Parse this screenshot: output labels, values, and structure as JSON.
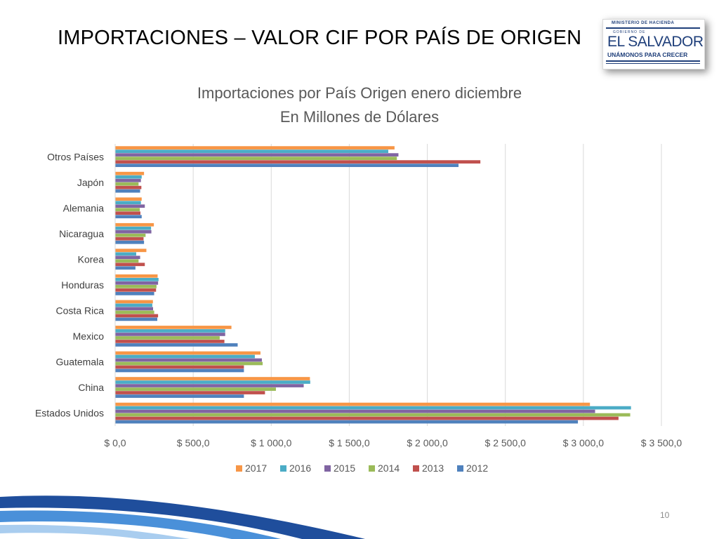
{
  "slide": {
    "title": "IMPORTACIONES –  VALOR CIF POR PAÍS DE ORIGEN",
    "page_number": "10"
  },
  "logo": {
    "ministry": "MINISTERIO DE HACIENDA",
    "government": "GOBIERNO DE",
    "name": "EL SALVADOR",
    "slogan": "UNÁMONOS PARA CRECER"
  },
  "chart_data": {
    "type": "bar",
    "orientation": "horizontal",
    "title": "Importaciones por País Origen enero diciembre",
    "subtitle": "En Millones de Dólares",
    "categories": [
      "Estados Unidos",
      "China",
      "Guatemala",
      "Mexico",
      "Costa Rica",
      "Honduras",
      "Korea",
      "Nicaragua",
      "Alemania",
      "Japón",
      "Otros Países"
    ],
    "series": [
      {
        "name": "2017",
        "color": "#f79646",
        "values": [
          3042,
          1248,
          931,
          745,
          242,
          272,
          200,
          248,
          170,
          185,
          1790
        ]
      },
      {
        "name": "2016",
        "color": "#4bacc6",
        "values": [
          3305,
          1250,
          895,
          705,
          238,
          278,
          135,
          230,
          165,
          170,
          1750
        ]
      },
      {
        "name": "2015",
        "color": "#8064a2",
        "values": [
          3075,
          1208,
          940,
          705,
          243,
          275,
          160,
          232,
          190,
          165,
          1815
        ]
      },
      {
        "name": "2014",
        "color": "#9bbb59",
        "values": [
          3300,
          1030,
          945,
          670,
          250,
          265,
          150,
          195,
          158,
          150,
          1805
        ]
      },
      {
        "name": "2013",
        "color": "#c0504d",
        "values": [
          3225,
          960,
          825,
          700,
          275,
          262,
          190,
          182,
          162,
          168,
          2340
        ]
      },
      {
        "name": "2012",
        "color": "#4f81bd",
        "values": [
          2965,
          825,
          825,
          785,
          270,
          250,
          130,
          185,
          170,
          160,
          2200
        ]
      }
    ],
    "xlim": [
      0,
      3500
    ],
    "xticks": [
      "$ 0,0",
      "$ 500,0",
      "$ 1 000,0",
      "$ 1 500,0",
      "$ 2 000,0",
      "$ 2 500,0",
      "$ 3 000,0",
      "$ 3 500,0"
    ],
    "grid": true,
    "legend": "bottom"
  }
}
